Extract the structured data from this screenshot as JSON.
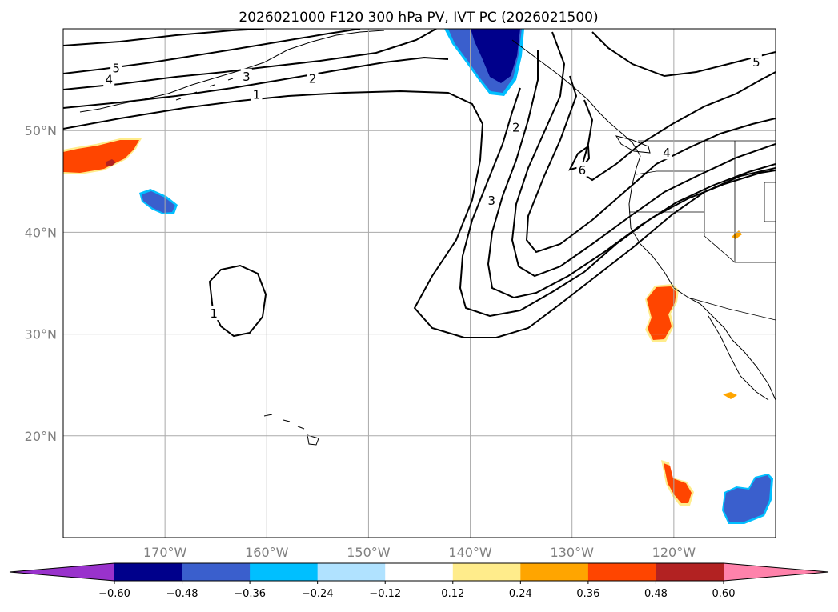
{
  "chart_data": {
    "type": "map",
    "title": "2026021000 F120 300 hPa PV, IVT PC (2026021500)",
    "lon_range": [
      -180,
      -110
    ],
    "lat_range": [
      10,
      60
    ],
    "lon_ticks": [
      {
        "value": -170,
        "label": "170°W"
      },
      {
        "value": -160,
        "label": "160°W"
      },
      {
        "value": -150,
        "label": "150°W"
      },
      {
        "value": -140,
        "label": "140°W"
      },
      {
        "value": -130,
        "label": "130°W"
      },
      {
        "value": -120,
        "label": "120°W"
      }
    ],
    "lat_ticks": [
      {
        "value": 20,
        "label": "20°N"
      },
      {
        "value": 30,
        "label": "30°N"
      },
      {
        "value": 40,
        "label": "40°N"
      },
      {
        "value": 50,
        "label": "50°N"
      }
    ],
    "grid": true,
    "colorbar": {
      "orientation": "horizontal",
      "extend": "both",
      "levels": [
        -0.6,
        -0.48,
        -0.36,
        -0.24,
        -0.12,
        0.12,
        0.24,
        0.36,
        0.48,
        0.6
      ],
      "tick_labels": [
        "−0.60",
        "−0.48",
        "−0.36",
        "−0.24",
        "−0.12",
        "0.12",
        "0.24",
        "0.36",
        "0.48",
        "0.60"
      ],
      "colors": [
        "#9932CC",
        "#00008B",
        "#3A5FCD",
        "#00BFFF",
        "#B0E2FF",
        "#FFFFFF",
        "#FFEC8B",
        "#FFA500",
        "#FF4500",
        "#B22222",
        "#FF82AB"
      ]
    },
    "contour_labels": [
      {
        "text": "5",
        "lon": -174.8,
        "lat": 56.1
      },
      {
        "text": "4",
        "lon": -175.5,
        "lat": 55.0
      },
      {
        "text": "3",
        "lon": -162.0,
        "lat": 55.3
      },
      {
        "text": "2",
        "lon": -155.5,
        "lat": 55.1
      },
      {
        "text": "1",
        "lon": -161.0,
        "lat": 53.5
      },
      {
        "text": "2",
        "lon": -135.5,
        "lat": 50.3
      },
      {
        "text": "3",
        "lon": -137.9,
        "lat": 43.1
      },
      {
        "text": "6",
        "lon": -129.0,
        "lat": 46.1
      },
      {
        "text": "4",
        "lon": -120.7,
        "lat": 47.8
      },
      {
        "text": "5",
        "lon": -111.9,
        "lat": 56.7
      },
      {
        "text": "1",
        "lon": -165.2,
        "lat": 32.0
      }
    ]
  }
}
